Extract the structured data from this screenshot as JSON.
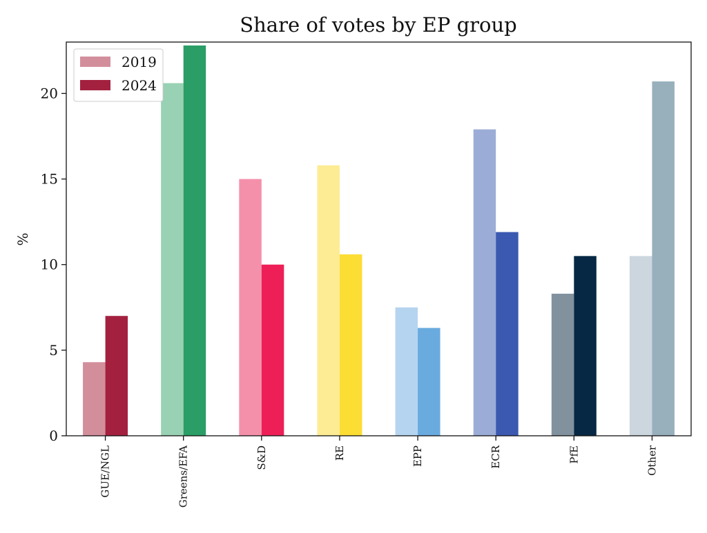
{
  "chart_data": {
    "type": "bar",
    "title": "Share of votes by EP group",
    "xlabel": "",
    "ylabel": "%",
    "ylim": [
      0,
      23
    ],
    "yticks": [
      "0",
      "5",
      "10",
      "15",
      "20"
    ],
    "categories": [
      "GUE/NGL",
      "Greens/EFA",
      "S&D",
      "RE",
      "EPP",
      "ECR",
      "PfE",
      "Other"
    ],
    "series": [
      {
        "name": "2019",
        "values": [
          4.3,
          20.6,
          15.0,
          15.8,
          7.5,
          17.9,
          8.3,
          10.5
        ],
        "colors": [
          "#d38e9c",
          "#98d1b3",
          "#f590ab",
          "#fdec94",
          "#b5d4f0",
          "#9badd6",
          "#81929e",
          "#cbd6de"
        ]
      },
      {
        "name": "2024",
        "values": [
          7.0,
          22.8,
          10.0,
          10.6,
          6.3,
          11.9,
          10.5,
          20.7
        ],
        "colors": [
          "#a3213f",
          "#2a9e66",
          "#ee1f57",
          "#fcdd34",
          "#6aabdf",
          "#3b59b1",
          "#072844",
          "#98b0bc"
        ]
      }
    ],
    "legend": {
      "position": "top-left",
      "entries": [
        {
          "label": "2019",
          "color": "#d38e9c"
        },
        {
          "label": "2024",
          "color": "#a3213f"
        }
      ]
    },
    "grid": false
  }
}
